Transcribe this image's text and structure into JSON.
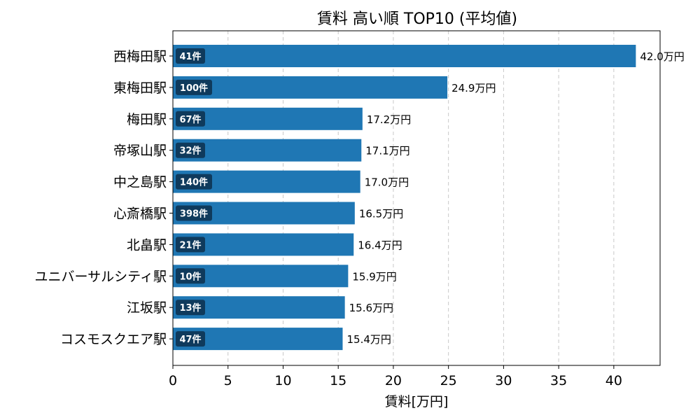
{
  "chart_data": {
    "type": "bar",
    "orientation": "horizontal",
    "title": "賃料 高い順 TOP10 (平均値)",
    "xlabel": "賃料[万円]",
    "ylabel": "",
    "xlim": [
      0,
      44.2
    ],
    "xticks": [
      0,
      5,
      10,
      15,
      20,
      25,
      30,
      35,
      40
    ],
    "grid": "x-dashed",
    "bar_color": "#1f77b4",
    "badge_color": "#0f3a5c",
    "value_suffix": "万円",
    "categories": [
      "西梅田駅",
      "東梅田駅",
      "梅田駅",
      "帝塚山駅",
      "中之島駅",
      "心斎橋駅",
      "北畠駅",
      "ユニバーサルシティ駅",
      "江坂駅",
      "コスモスクエア駅"
    ],
    "values": [
      42.0,
      24.9,
      17.2,
      17.1,
      17.0,
      16.5,
      16.4,
      15.9,
      15.6,
      15.4
    ],
    "value_labels": [
      "42.0万円",
      "24.9万円",
      "17.2万円",
      "17.1万円",
      "17.0万円",
      "16.5万円",
      "16.4万円",
      "15.9万円",
      "15.6万円",
      "15.4万円"
    ],
    "count_labels": [
      "41件",
      "100件",
      "67件",
      "32件",
      "140件",
      "398件",
      "21件",
      "10件",
      "13件",
      "47件"
    ]
  }
}
